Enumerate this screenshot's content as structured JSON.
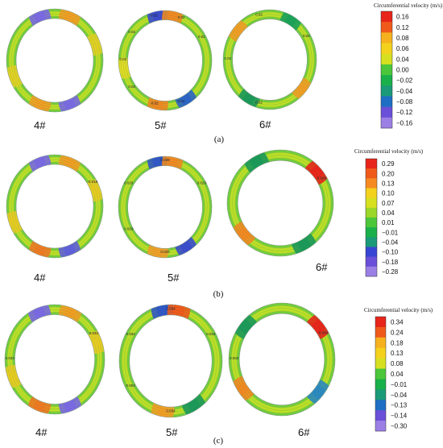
{
  "panels": [
    {
      "caption": "(a)",
      "legend": {
        "title": "Circumferential velocity (m/s)",
        "ticks": [
          "0.16",
          "0.12",
          "0.08",
          "0.06",
          "0.04",
          "0.00",
          "−0.02",
          "−0.04",
          "−0.08",
          "−0.12",
          "−0.16"
        ]
      },
      "rings": [
        {
          "label": "4#",
          "contours": []
        },
        {
          "label": "5#",
          "contours": [
            "0.02",
            "0.02",
            "0.02",
            "0.02",
            "0.02",
            "0.02",
            "-0.02",
            "0.02"
          ]
        },
        {
          "label": "6#",
          "contours": [
            "0.02",
            "0.02",
            "0.02",
            "0.02"
          ]
        }
      ]
    },
    {
      "caption": "(b)",
      "legend": {
        "title": "Circumferential velocity (m/s)",
        "ticks": [
          "0.29",
          "0.20",
          "0.13",
          "0.10",
          "0.07",
          "0.04",
          "0.01",
          "−0.01",
          "−0.04",
          "−0.10",
          "−0.18",
          "−0.28"
        ]
      },
      "rings": [
        {
          "label": "4#",
          "contours": [
            "-0.018"
          ]
        },
        {
          "label": "5#",
          "contours": [
            "0.029",
            "0.029",
            "0.029",
            "0.029",
            "0.029"
          ]
        },
        {
          "label": "6#",
          "contours": [
            "0.029"
          ]
        }
      ]
    },
    {
      "caption": "(c)",
      "legend": {
        "title": "Circumferential velocity (m/s)",
        "ticks": [
          "0.34",
          "0.24",
          "0.18",
          "0.13",
          "0.08",
          "0.04",
          "−0.01",
          "−0.04",
          "−0.13",
          "−0.14",
          "−0.30"
        ]
      },
      "rings": [
        {
          "label": "4#",
          "contours": [
            "0.034",
            "0.034"
          ]
        },
        {
          "label": "5#",
          "contours": [
            "0.034",
            "0.034",
            "0.034",
            "0.004",
            "0.034"
          ]
        },
        {
          "label": "6#",
          "contours": [
            "0.034",
            "0.034"
          ]
        }
      ]
    }
  ]
}
